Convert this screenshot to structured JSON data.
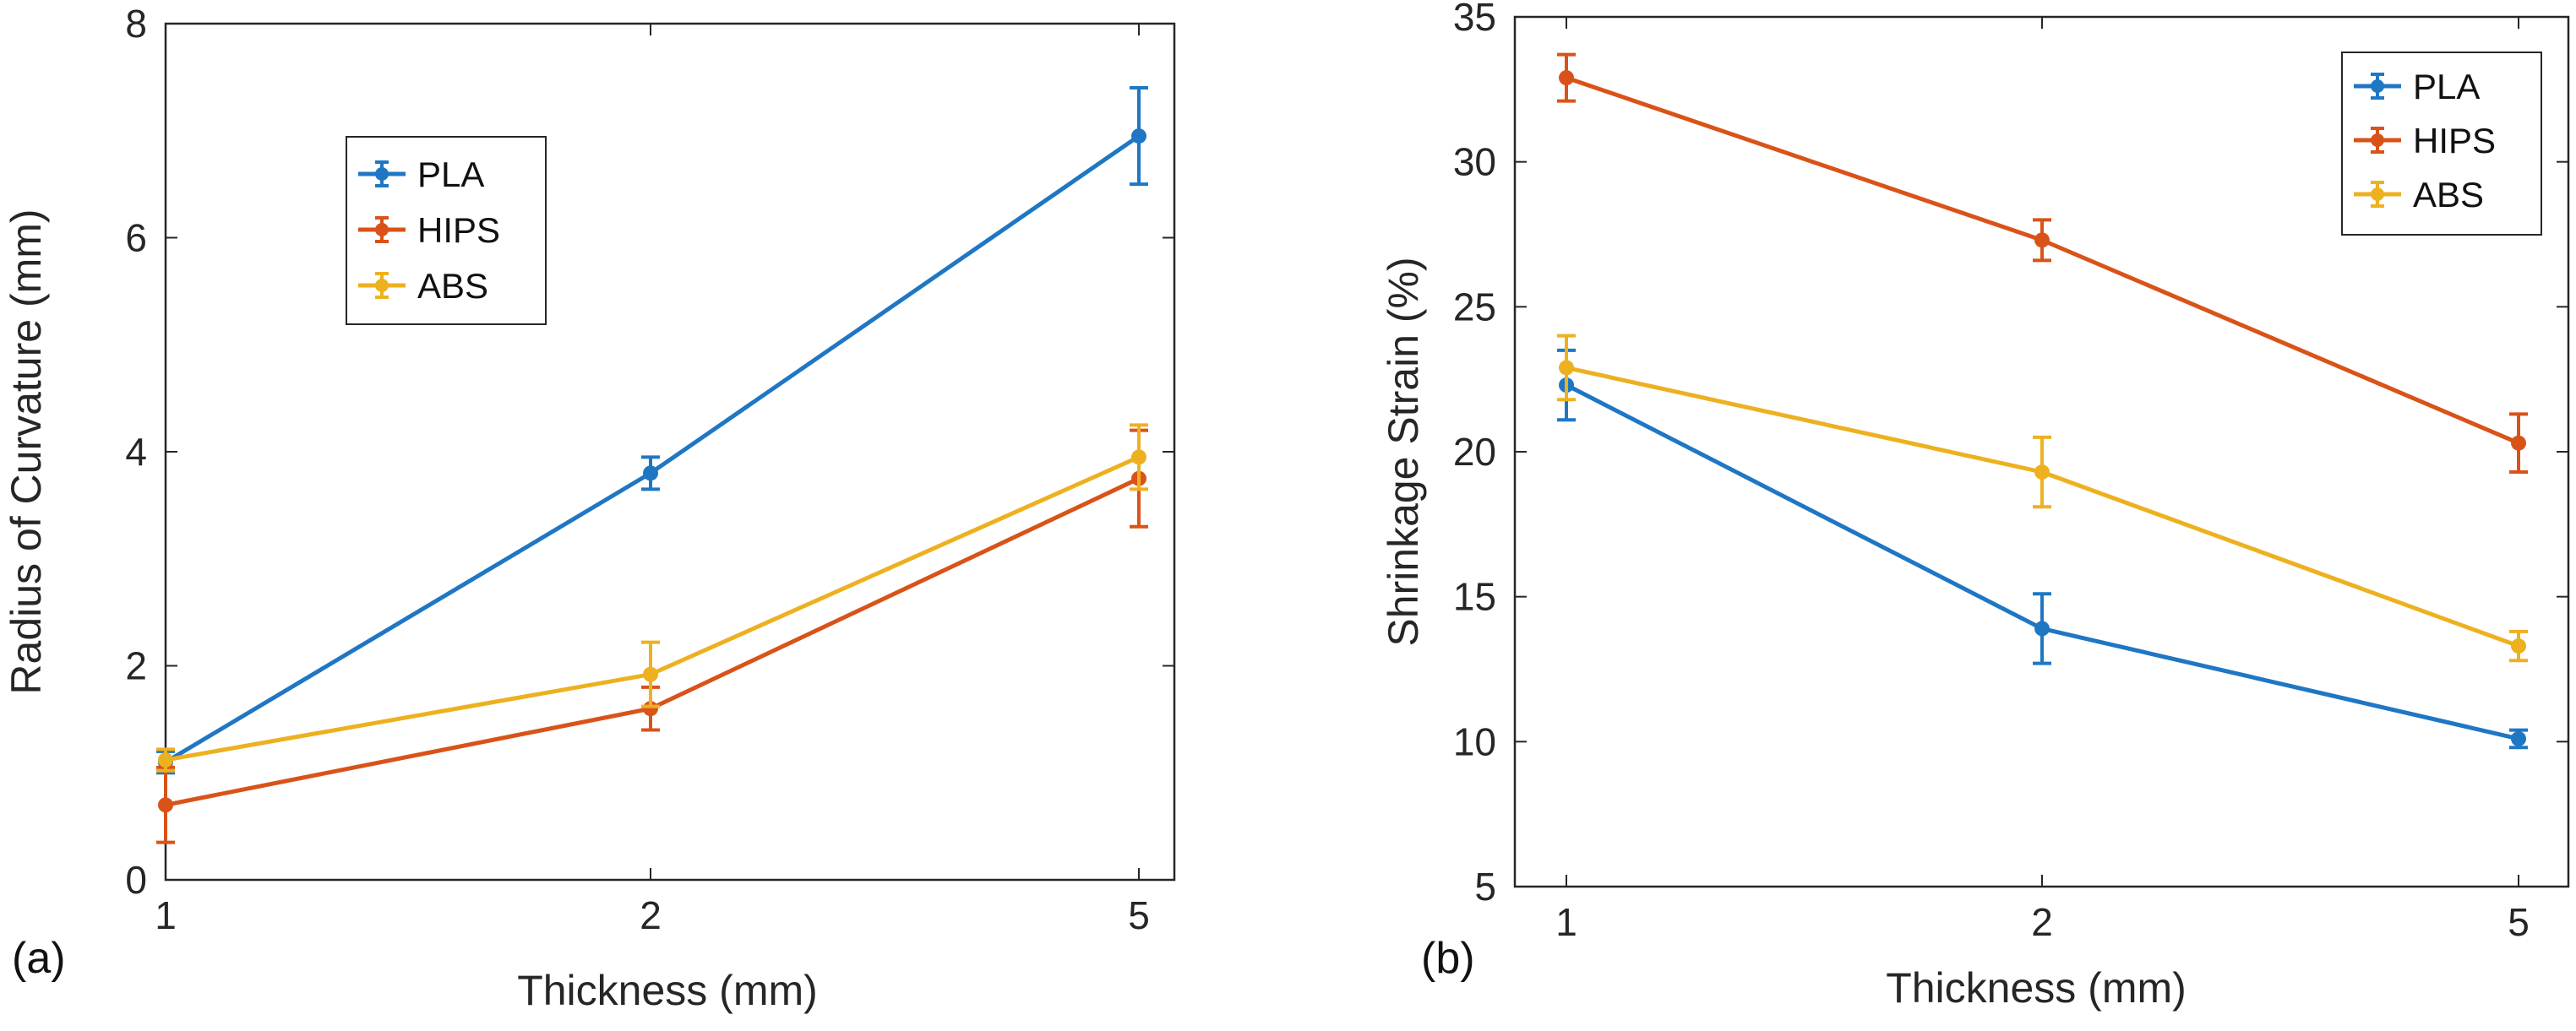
{
  "chart_data": [
    {
      "id": "a",
      "panel_label": "(a)",
      "type": "line",
      "xlabel": "Thickness (mm)",
      "ylabel": "Radius of Curvature (mm)",
      "categories": [
        "1",
        "2",
        "5"
      ],
      "ylim": [
        0,
        8
      ],
      "yticks": [
        0,
        2,
        4,
        6,
        8
      ],
      "legend_position": "upper-left-inside",
      "series": [
        {
          "name": "PLA",
          "color": "#1f77c4",
          "values": [
            1.1,
            3.8,
            6.95
          ],
          "errors": [
            0.1,
            0.15,
            0.45
          ]
        },
        {
          "name": "HIPS",
          "color": "#d95319",
          "values": [
            0.7,
            1.6,
            3.75
          ],
          "errors": [
            0.35,
            0.2,
            0.45
          ]
        },
        {
          "name": "ABS",
          "color": "#edb120",
          "values": [
            1.12,
            1.92,
            3.95
          ],
          "errors": [
            0.1,
            0.3,
            0.3
          ]
        }
      ]
    },
    {
      "id": "b",
      "panel_label": "(b)",
      "type": "line",
      "xlabel": "Thickness (mm)",
      "ylabel": "Shrinkage Strain (%)",
      "categories": [
        "1",
        "2",
        "5"
      ],
      "ylim": [
        5,
        35
      ],
      "yticks": [
        5,
        10,
        15,
        20,
        25,
        30,
        35
      ],
      "legend_position": "top-right",
      "series": [
        {
          "name": "PLA",
          "color": "#1f77c4",
          "values": [
            22.3,
            13.9,
            10.1
          ],
          "errors": [
            1.2,
            1.2,
            0.3
          ]
        },
        {
          "name": "HIPS",
          "color": "#d95319",
          "values": [
            32.9,
            27.3,
            20.3
          ],
          "errors": [
            0.8,
            0.7,
            1.0
          ]
        },
        {
          "name": "ABS",
          "color": "#edb120",
          "values": [
            22.9,
            19.3,
            13.3
          ],
          "errors": [
            1.1,
            1.2,
            0.5
          ]
        }
      ]
    }
  ]
}
